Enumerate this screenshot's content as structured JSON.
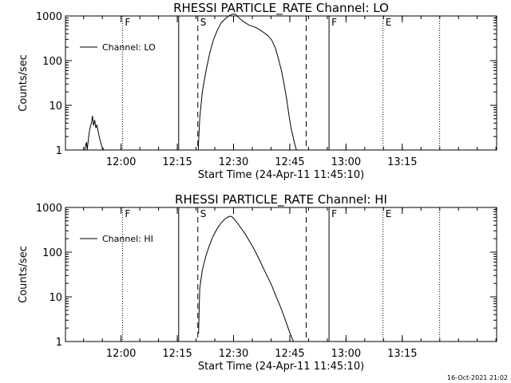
{
  "chart_data": [
    {
      "type": "line",
      "title": "RHESSI PARTICLE_RATE Channel: LO",
      "xlabel": "Start Time (24-Apr-11 11:45:10)",
      "ylabel": "Counts/sec",
      "yscale": "log",
      "ylim": [
        1,
        1000
      ],
      "xlim_minutes": [
        0,
        115
      ],
      "x_ticks": [
        {
          "label": "12:00",
          "minutes": 14.83
        },
        {
          "label": "12:15",
          "minutes": 29.83
        },
        {
          "label": "12:30",
          "minutes": 44.83
        },
        {
          "label": "12:45",
          "minutes": 59.83
        },
        {
          "label": "13:00",
          "minutes": 74.83
        },
        {
          "label": "13:15",
          "minutes": 89.83
        }
      ],
      "y_ticks": [
        {
          "label": "1",
          "value": 1
        },
        {
          "label": "10",
          "value": 10
        },
        {
          "label": "100",
          "value": 100
        },
        {
          "label": "1000",
          "value": 1000
        }
      ],
      "legend": {
        "label": "Channel: LO",
        "position": "top-left"
      },
      "markers": [
        {
          "label": "F",
          "minutes": 15.2,
          "style": "dotted"
        },
        {
          "label": "",
          "minutes": 30.2,
          "style": "solid"
        },
        {
          "label": "S",
          "minutes": 35.3,
          "style": "dashed"
        },
        {
          "label": "",
          "minutes": 64.2,
          "style": "dashed"
        },
        {
          "label": "F",
          "minutes": 70.3,
          "style": "solid"
        },
        {
          "label": "E",
          "minutes": 84.7,
          "style": "dotted"
        },
        {
          "label": "",
          "minutes": 99.8,
          "style": "dotted"
        }
      ],
      "series": [
        {
          "name": "Channel: LO",
          "segments": [
            {
              "x": [
                5.1,
                5.6,
                5.8,
                6.2,
                6.5,
                7.0,
                7.2,
                7.5,
                7.8,
                8.1,
                8.4,
                8.8,
                9.2,
                9.7,
                10.3
              ],
              "y": [
                1.0,
                1.5,
                1.0,
                2.0,
                3.0,
                4.3,
                5.8,
                3.5,
                4.7,
                3.1,
                3.6,
                2.4,
                1.7,
                1.2,
                1.0
              ]
            },
            {
              "x": [
                35.4,
                35.8,
                36.5,
                37.5,
                38.5,
                39.5,
                40.5,
                41.5,
                42.5,
                43.5,
                44.5,
                45.3,
                46.0,
                47.0,
                48.0,
                49.0,
                50.0,
                51.0,
                52.0,
                53.0,
                54.0,
                55.0,
                56.0,
                56.8,
                57.6,
                58.3,
                59.0,
                59.6,
                60.2,
                60.7,
                61.2,
                61.6
              ],
              "y": [
                1.0,
                5.0,
                20,
                60,
                150,
                300,
                480,
                700,
                850,
                1000,
                1100,
                1100,
                950,
                800,
                700,
                620,
                580,
                540,
                480,
                420,
                360,
                290,
                190,
                110,
                60,
                30,
                14,
                6,
                3,
                2.0,
                1.3,
                1.0
              ]
            }
          ]
        }
      ]
    },
    {
      "type": "line",
      "title": "RHESSI PARTICLE_RATE Channel: HI",
      "xlabel": "Start Time (24-Apr-11 11:45:10)",
      "ylabel": "Counts/sec",
      "yscale": "log",
      "ylim": [
        1,
        1000
      ],
      "xlim_minutes": [
        0,
        115
      ],
      "x_ticks": [
        {
          "label": "12:00",
          "minutes": 14.83
        },
        {
          "label": "12:15",
          "minutes": 29.83
        },
        {
          "label": "12:30",
          "minutes": 44.83
        },
        {
          "label": "12:45",
          "minutes": 59.83
        },
        {
          "label": "13:00",
          "minutes": 74.83
        },
        {
          "label": "13:15",
          "minutes": 89.83
        }
      ],
      "y_ticks": [
        {
          "label": "1",
          "value": 1
        },
        {
          "label": "10",
          "value": 10
        },
        {
          "label": "100",
          "value": 100
        },
        {
          "label": "1000",
          "value": 1000
        }
      ],
      "legend": {
        "label": "Channel: HI",
        "position": "top-left"
      },
      "markers": [
        {
          "label": "F",
          "minutes": 15.2,
          "style": "dotted"
        },
        {
          "label": "",
          "minutes": 30.2,
          "style": "solid"
        },
        {
          "label": "S",
          "minutes": 35.3,
          "style": "dashed"
        },
        {
          "label": "",
          "minutes": 64.2,
          "style": "dashed"
        },
        {
          "label": "F",
          "minutes": 70.3,
          "style": "solid"
        },
        {
          "label": "E",
          "minutes": 84.7,
          "style": "dotted"
        },
        {
          "label": "",
          "minutes": 99.8,
          "style": "dotted"
        }
      ],
      "series": [
        {
          "name": "Channel: HI",
          "segments": [
            {
              "x": [
                35.5,
                35.8,
                36.5,
                37.5,
                38.5,
                39.5,
                40.5,
                41.5,
                42.5,
                43.5,
                44.0,
                44.5,
                45.0,
                46.0,
                47.0,
                48.0,
                49.0,
                50.0,
                51.0,
                52.0,
                53.0,
                54.0,
                55.0,
                56.0,
                57.0,
                58.0,
                59.0,
                59.8,
                60.4,
                60.8
              ],
              "y": [
                1.5,
                15,
                40,
                85,
                150,
                240,
                340,
                450,
                550,
                620,
                640,
                610,
                550,
                430,
                330,
                250,
                180,
                130,
                90,
                60,
                40,
                27,
                18,
                11,
                7,
                4.3,
                2.5,
                1.6,
                1.2,
                1.0
              ]
            }
          ]
        }
      ]
    }
  ],
  "footer": {
    "timestamp": "16-Oct-2021 21:02"
  }
}
